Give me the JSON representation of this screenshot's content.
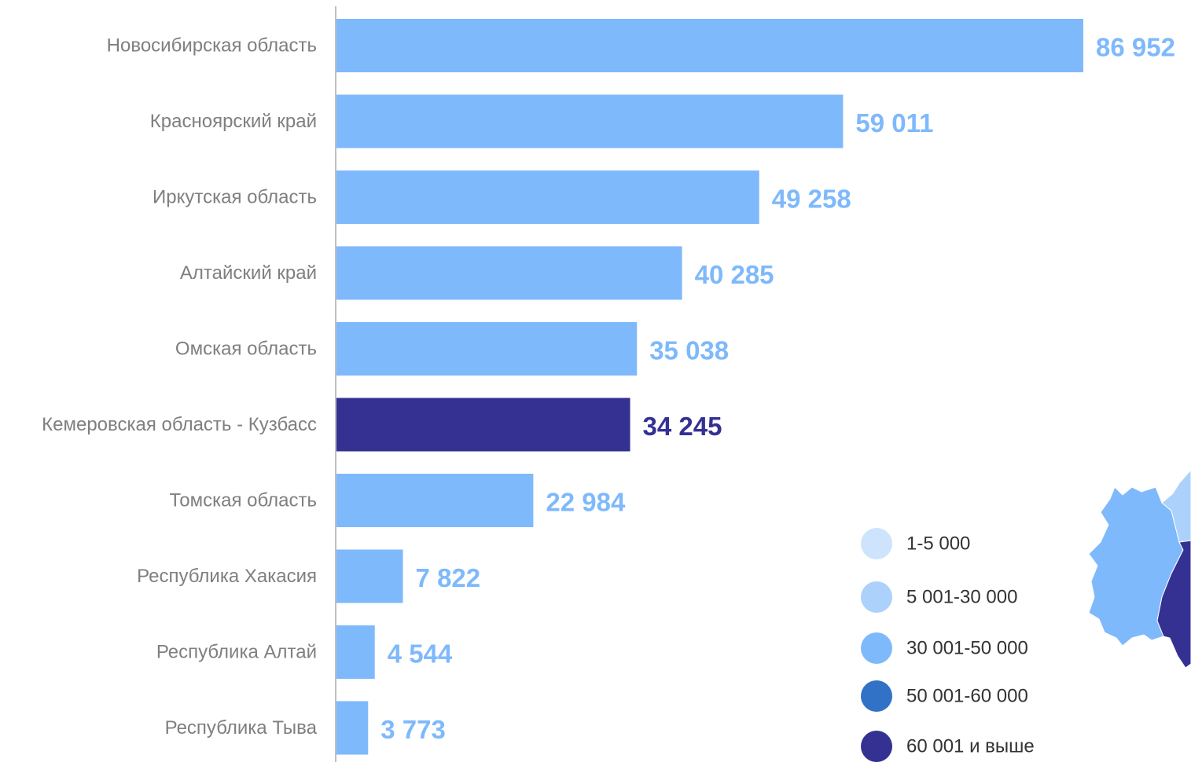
{
  "chart_data": {
    "type": "bar",
    "orientation": "horizontal",
    "categories": [
      "Новосибирская область",
      "Красноярский край",
      "Иркутская область",
      "Алтайский край",
      "Омская область",
      "Кемеровская область - Кузбасс",
      "Томская область",
      "Республика Хакасия",
      "Республика Алтай",
      "Республика Тыва"
    ],
    "values": [
      86952,
      59011,
      49258,
      40285,
      35038,
      34245,
      22984,
      7822,
      4544,
      3773
    ],
    "value_labels": [
      "86 952",
      "59 011",
      "49 258",
      "40 285",
      "35 038",
      "34 245",
      "22 984",
      "7 822",
      "4 544",
      "3 773"
    ],
    "highlight_index": 5,
    "xlim": [
      0,
      86952
    ],
    "grid": false,
    "legend_position": "bottom-right",
    "colors": {
      "bar": "#7eb9fb",
      "highlight": "#343193",
      "axis": "#bfbfbf",
      "category_label": "#7f7f7f"
    },
    "legend": [
      {
        "label": "1-5 000",
        "color": "#cde4fc"
      },
      {
        "label": "5 001-30 000",
        "color": "#acd1fb"
      },
      {
        "label": "30 001-50 000",
        "color": "#7eb9fb"
      },
      {
        "label": "50 001-60 000",
        "color": "#3272c6"
      },
      {
        "label": "60 001 и выше",
        "color": "#343193"
      }
    ]
  },
  "map_fragment": {
    "region_colors": [
      "#7eb9fb",
      "#343193",
      "#acd1fb"
    ]
  }
}
